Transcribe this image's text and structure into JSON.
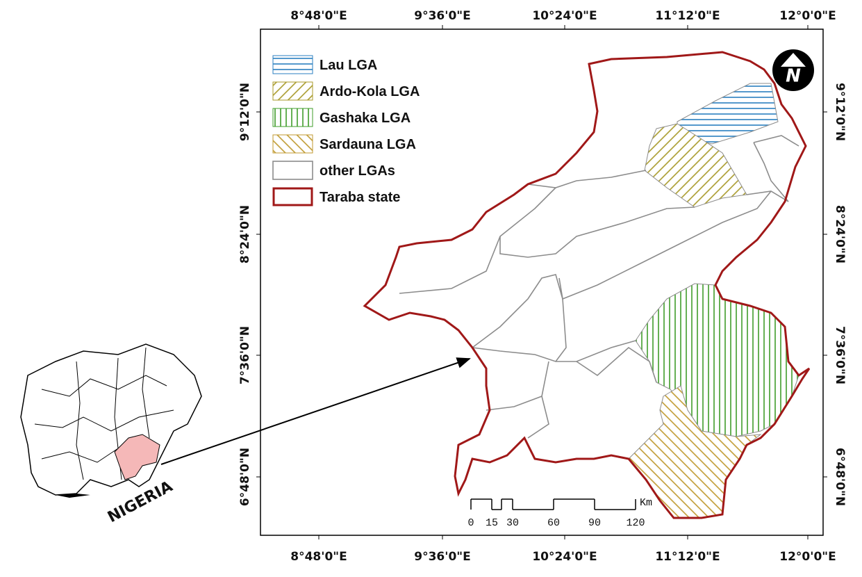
{
  "map": {
    "lon_labels": [
      "8°48'0\"E",
      "9°36'0\"E",
      "10°24'0\"E",
      "11°12'0\"E",
      "12°0'0\"E"
    ],
    "lat_labels": [
      "9°12'0\"N",
      "8°24'0\"N",
      "7°36'0\"N",
      "6°48'0\"N"
    ],
    "legend": [
      "Lau LGA",
      "Ardo-Kola LGA",
      "Gashaka LGA",
      "Sardauna LGA",
      "other LGAs",
      "Taraba state"
    ],
    "scale": {
      "labels": [
        "0",
        "15",
        "30",
        "60",
        "90",
        "120"
      ],
      "unit": "Km"
    },
    "inset_label": "NIGERIA",
    "north": "N"
  }
}
